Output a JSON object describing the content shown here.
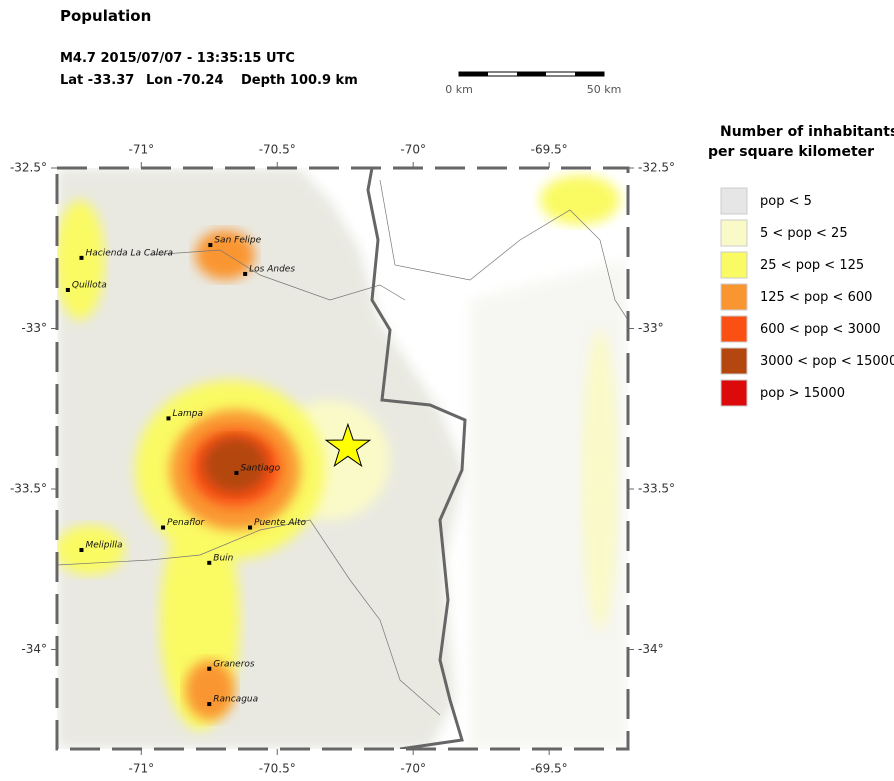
{
  "header": {
    "title": "Population",
    "event": "M4.7  2015/07/07 - 13:35:15 UTC",
    "lat": "Lat -33.37",
    "lon": "Lon -70.24",
    "depth": "Depth 100.9 km"
  },
  "scale_bar": {
    "start": "0 km",
    "end": "50 km"
  },
  "map": {
    "xlim": [
      -71.31,
      -69.21
    ],
    "ylim": [
      -34.31,
      -32.5
    ],
    "xticks": [
      {
        "value": -71,
        "label": "-71°"
      },
      {
        "value": -70.5,
        "label": "-70.5°"
      },
      {
        "value": -70,
        "label": "-70°"
      },
      {
        "value": -69.5,
        "label": "-69.5°"
      }
    ],
    "yticks": [
      {
        "value": -32.5,
        "label": "-32.5°"
      },
      {
        "value": -33,
        "label": "-33°"
      },
      {
        "value": -33.5,
        "label": "-33.5°"
      },
      {
        "value": -34,
        "label": "-34°"
      }
    ],
    "epicenter": {
      "lon": -70.24,
      "lat": -33.37
    },
    "cities": [
      {
        "name": "San Felipe",
        "lon": -70.746,
        "lat": -32.74
      },
      {
        "name": "Los Andes",
        "lon": -70.618,
        "lat": -32.83
      },
      {
        "name": "Hacienda La Calera",
        "lon": -71.22,
        "lat": -32.78
      },
      {
        "name": "Quillota",
        "lon": -71.27,
        "lat": -32.88
      },
      {
        "name": "Lampa",
        "lon": -70.9,
        "lat": -33.28
      },
      {
        "name": "Santiago",
        "lon": -70.65,
        "lat": -33.45
      },
      {
        "name": "Penaflor",
        "lon": -70.92,
        "lat": -33.62
      },
      {
        "name": "Puente Alto",
        "lon": -70.6,
        "lat": -33.62
      },
      {
        "name": "Melipilla",
        "lon": -71.22,
        "lat": -33.69
      },
      {
        "name": "Buin",
        "lon": -70.75,
        "lat": -33.73
      },
      {
        "name": "Graneros",
        "lon": -70.75,
        "lat": -34.06
      },
      {
        "name": "Rancagua",
        "lon": -70.75,
        "lat": -34.17
      }
    ]
  },
  "legend": {
    "title_line1": "Number of inhabitants",
    "title_line2": "per square kilometer",
    "entries": [
      {
        "label": "pop < 5",
        "color": "#e6e6e6"
      },
      {
        "label": "5 < pop < 25",
        "color": "#fafac8"
      },
      {
        "label": "25 < pop < 125",
        "color": "#fafa64"
      },
      {
        "label": "125 < pop < 600",
        "color": "#fa9632"
      },
      {
        "label": "600 < pop < 3000",
        "color": "#fa5014"
      },
      {
        "label": "3000 < pop < 15000",
        "color": "#b4460f"
      },
      {
        "label": "pop > 15000",
        "color": "#dc0a0a"
      }
    ]
  }
}
